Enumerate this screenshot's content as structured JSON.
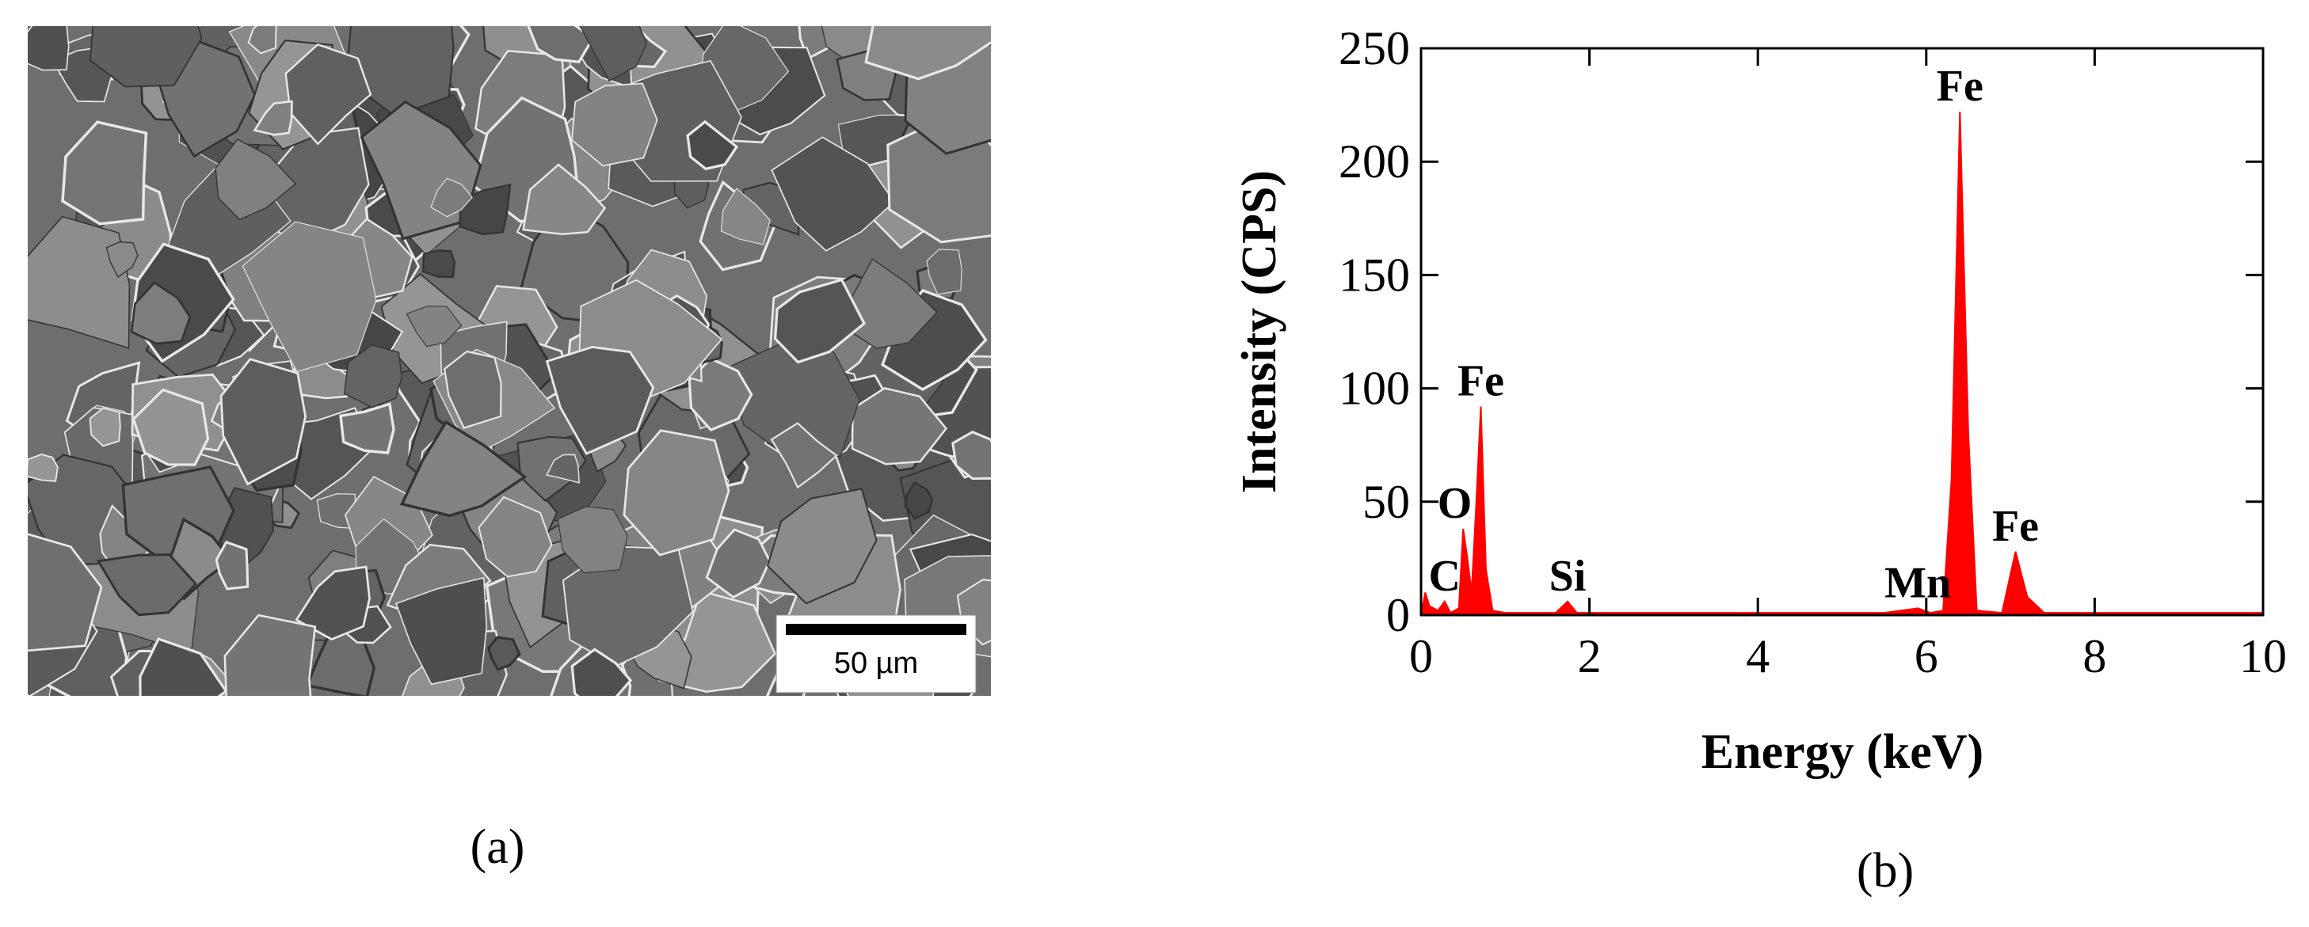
{
  "image_panel": {
    "scale_bar": "50 µm",
    "caption": "(a)"
  },
  "chart_data": {
    "type": "area",
    "caption": "(b)",
    "x_label": "Energy (keV)",
    "y_label": "Intensity (CPS)",
    "color": "#ff0000",
    "x": [
      0,
      0.05,
      0.1,
      0.2,
      0.28,
      0.35,
      0.45,
      0.5,
      0.55,
      0.6,
      0.65,
      0.71,
      0.77,
      0.85,
      1.0,
      1.6,
      1.74,
      1.85,
      2.5,
      4,
      5.5,
      5.9,
      6.05,
      6.2,
      6.3,
      6.4,
      6.5,
      6.6,
      6.9,
      7.06,
      7.2,
      7.4,
      8,
      10
    ],
    "values": [
      0,
      10,
      4,
      2,
      6,
      1,
      3,
      38,
      25,
      10,
      45,
      92,
      20,
      2,
      1,
      1,
      6,
      1,
      1,
      1,
      1,
      3,
      1,
      2,
      60,
      222,
      80,
      2,
      1,
      28,
      8,
      1,
      1,
      1
    ],
    "peaks": [
      {
        "label": "C",
        "x": 0.28,
        "y": 6
      },
      {
        "label": "O",
        "x": 0.4,
        "y": 38
      },
      {
        "label": "Fe",
        "x": 0.71,
        "y": 92
      },
      {
        "label": "Si",
        "x": 1.74,
        "y": 6
      },
      {
        "label": "Mn",
        "x": 5.9,
        "y": 3
      },
      {
        "label": "Fe",
        "x": 6.4,
        "y": 222
      },
      {
        "label": "Fe",
        "x": 7.06,
        "y": 28
      }
    ],
    "xlim": [
      0,
      10
    ],
    "xticks": [
      0,
      2,
      4,
      6,
      8,
      10
    ],
    "ylim": [
      0,
      250
    ],
    "yticks": [
      0,
      50,
      100,
      150,
      200,
      250
    ]
  }
}
